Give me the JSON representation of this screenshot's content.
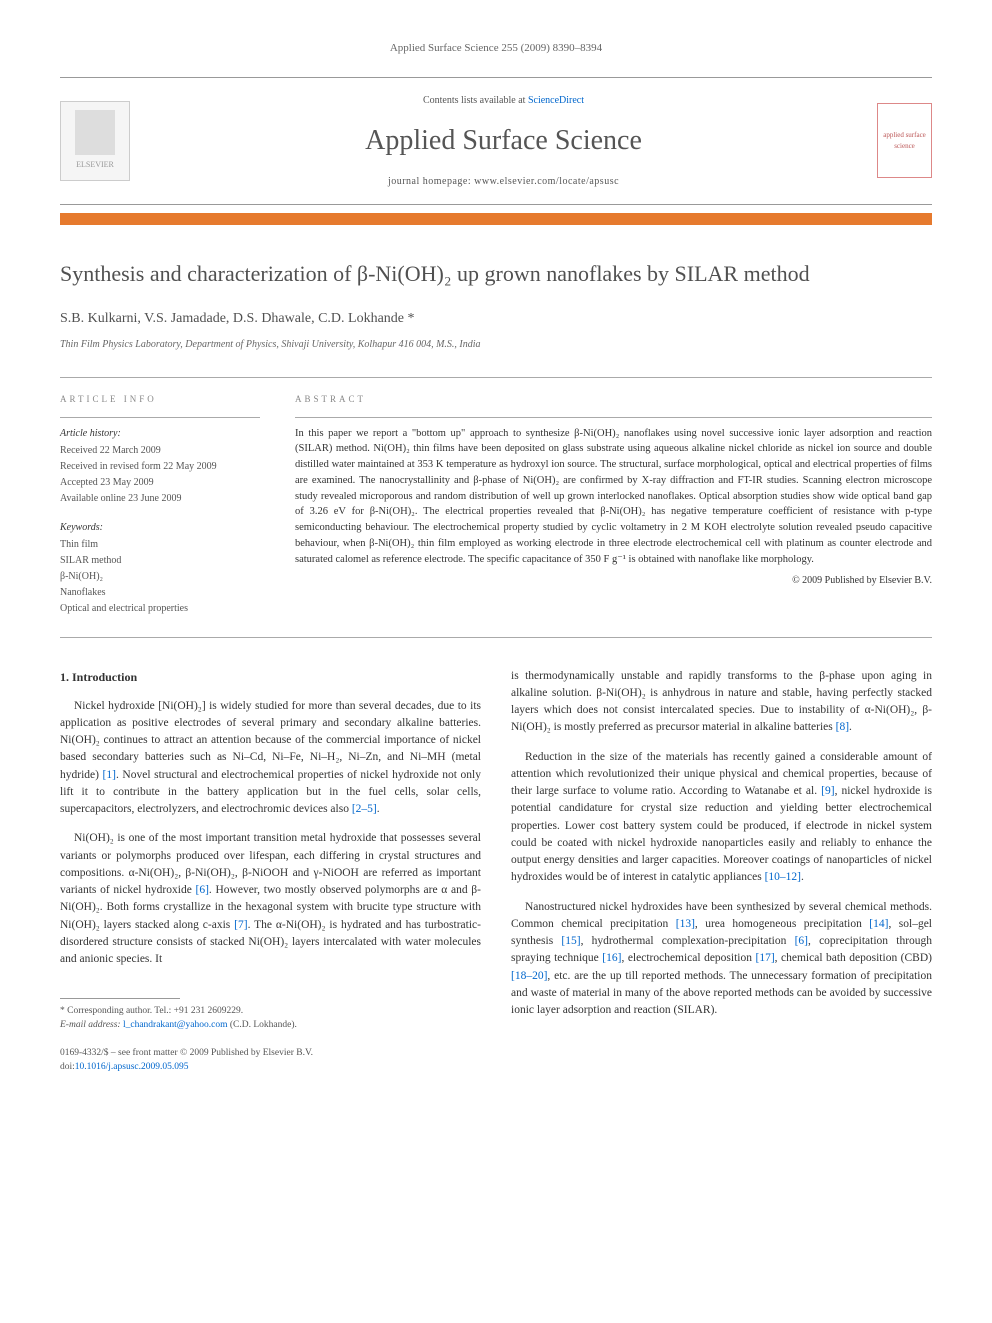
{
  "header": {
    "citation": "Applied Surface Science 255 (2009) 8390–8394"
  },
  "banner": {
    "contents_prefix": "Contents lists available at ",
    "contents_link": "ScienceDirect",
    "journal_name": "Applied Surface Science",
    "homepage_prefix": "journal homepage: ",
    "homepage_url": "www.elsevier.com/locate/apsusc",
    "publisher_label": "ELSEVIER",
    "cover_text": "applied surface science"
  },
  "title": "Synthesis and characterization of β-Ni(OH)₂ up grown nanoflakes by SILAR method",
  "authors": "S.B. Kulkarni, V.S. Jamadade, D.S. Dhawale, C.D. Lokhande *",
  "affiliation": "Thin Film Physics Laboratory, Department of Physics, Shivaji University, Kolhapur 416 004, M.S., India",
  "article_info": {
    "label": "ARTICLE INFO",
    "history_label": "Article history:",
    "history": [
      "Received 22 March 2009",
      "Received in revised form 22 May 2009",
      "Accepted 23 May 2009",
      "Available online 23 June 2009"
    ],
    "keywords_label": "Keywords:",
    "keywords": [
      "Thin film",
      "SILAR method",
      "β-Ni(OH)₂",
      "Nanoflakes",
      "Optical and electrical properties"
    ]
  },
  "abstract": {
    "label": "ABSTRACT",
    "text": "In this paper we report a \"bottom up\" approach to synthesize β-Ni(OH)₂ nanoflakes using novel successive ionic layer adsorption and reaction (SILAR) method. Ni(OH)₂ thin films have been deposited on glass substrate using aqueous alkaline nickel chloride as nickel ion source and double distilled water maintained at 353 K temperature as hydroxyl ion source. The structural, surface morphological, optical and electrical properties of films are examined. The nanocrystallinity and β-phase of Ni(OH)₂ are confirmed by X-ray diffraction and FT-IR studies. Scanning electron microscope study revealed microporous and random distribution of well up grown interlocked nanoflakes. Optical absorption studies show wide optical band gap of 3.26 eV for β-Ni(OH)₂. The electrical properties revealed that β-Ni(OH)₂ has negative temperature coefficient of resistance with p-type semiconducting behaviour. The electrochemical property studied by cyclic voltametry in 2 M KOH electrolyte solution revealed pseudo capacitive behaviour, when β-Ni(OH)₂ thin film employed as working electrode in three electrode electrochemical cell with platinum as counter electrode and saturated calomel as reference electrode. The specific capacitance of 350 F g⁻¹ is obtained with nanoflake like morphology.",
    "copyright": "© 2009 Published by Elsevier B.V."
  },
  "body": {
    "section_heading": "1. Introduction",
    "col1_p1": "Nickel hydroxide [Ni(OH)₂] is widely studied for more than several decades, due to its application as positive electrodes of several primary and secondary alkaline batteries. Ni(OH)₂ continues to attract an attention because of the commercial importance of nickel based secondary batteries such as Ni–Cd, Ni–Fe, Ni–H₂, Ni–Zn, and Ni–MH (metal hydride) [1]. Novel structural and electrochemical properties of nickel hydroxide not only lift it to contribute in the battery application but in the fuel cells, solar cells, supercapacitors, electrolyzers, and electrochromic devices also [2–5].",
    "col1_p2": "Ni(OH)₂ is one of the most important transition metal hydroxide that possesses several variants or polymorphs produced over lifespan, each differing in crystal structures and compositions. α-Ni(OH)₂, β-Ni(OH)₂, β-NiOOH and γ-NiOOH are referred as important variants of nickel hydroxide [6]. However, two mostly observed polymorphs are α and β-Ni(OH)₂. Both forms crystallize in the hexagonal system with brucite type structure with Ni(OH)₂ layers stacked along c-axis [7]. The α-Ni(OH)₂ is hydrated and has turbostratic-disordered structure consists of stacked Ni(OH)₂ layers intercalated with water molecules and anionic species. It",
    "col2_p1": "is thermodynamically unstable and rapidly transforms to the β-phase upon aging in alkaline solution. β-Ni(OH)₂ is anhydrous in nature and stable, having perfectly stacked layers which does not consist intercalated species. Due to instability of α-Ni(OH)₂, β-Ni(OH)₂ is mostly preferred as precursor material in alkaline batteries [8].",
    "col2_p2": "Reduction in the size of the materials has recently gained a considerable amount of attention which revolutionized their unique physical and chemical properties, because of their large surface to volume ratio. According to Watanabe et al. [9], nickel hydroxide is potential candidature for crystal size reduction and yielding better electrochemical properties. Lower cost battery system could be produced, if electrode in nickel system could be coated with nickel hydroxide nanoparticles easily and reliably to enhance the output energy densities and larger capacities. Moreover coatings of nanoparticles of nickel hydroxides would be of interest in catalytic appliances [10–12].",
    "col2_p3": "Nanostructured nickel hydroxides have been synthesized by several chemical methods. Common chemical precipitation [13], urea homogeneous precipitation [14], sol–gel synthesis [15], hydrothermal complexation-precipitation [6], coprecipitation through spraying technique [16], electrochemical deposition [17], chemical bath deposition (CBD) [18–20], etc. are the up till reported methods. The unnecessary formation of precipitation and waste of material in many of the above reported methods can be avoided by successive ionic layer adsorption and reaction (SILAR)."
  },
  "footnote": {
    "corresponding": "* Corresponding author. Tel.: +91 231 2609229.",
    "email_label": "E-mail address: ",
    "email": "l_chandrakant@yahoo.com",
    "email_suffix": " (C.D. Lokhande)."
  },
  "footer": {
    "issn_line": "0169-4332/$ – see front matter © 2009 Published by Elsevier B.V.",
    "doi_prefix": "doi:",
    "doi": "10.1016/j.apsusc.2009.05.095"
  },
  "refs": {
    "r1": "[1]",
    "r2_5": "[2–5]",
    "r6": "[6]",
    "r7": "[7]",
    "r8": "[8]",
    "r9": "[9]",
    "r10_12": "[10–12]",
    "r13": "[13]",
    "r14": "[14]",
    "r15": "[15]",
    "r16": "[16]",
    "r17": "[17]",
    "r18_20": "[18–20]"
  }
}
